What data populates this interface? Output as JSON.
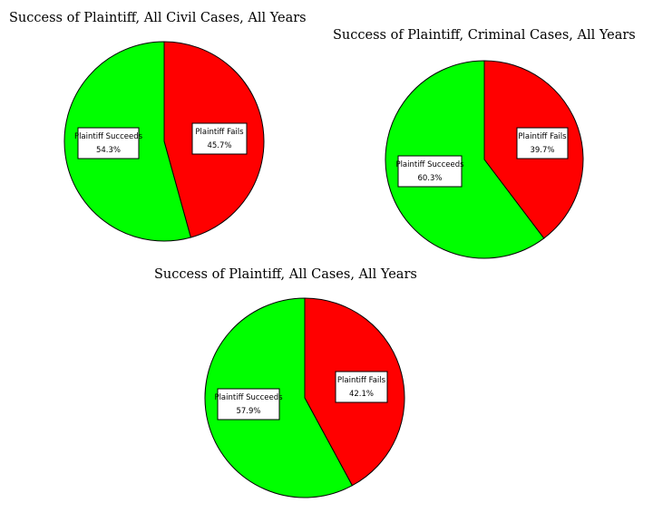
{
  "colors": {
    "succeeds": "#00FF00",
    "fails": "#FF0000",
    "outline": "#000000",
    "label_box": "#FFFFFF"
  },
  "chart_data": [
    {
      "type": "pie",
      "title": "Success of Plaintiff, All Civil Cases, All Years",
      "slices": [
        {
          "label": "Plaintiff Fails",
          "value": 45.7,
          "value_text": "45.7%",
          "color": "#FF0000"
        },
        {
          "label": "Plaintiff Succeeds",
          "value": 54.3,
          "value_text": "54.3%",
          "color": "#00FF00"
        }
      ]
    },
    {
      "type": "pie",
      "title": "Success of Plaintiff, Criminal Cases, All Years",
      "slices": [
        {
          "label": "Plaintiff Fails",
          "value": 39.7,
          "value_text": "39.7%",
          "color": "#FF0000"
        },
        {
          "label": "Plaintiff Succeeds",
          "value": 60.3,
          "value_text": "60.3%",
          "color": "#00FF00"
        }
      ]
    },
    {
      "type": "pie",
      "title": "Success of Plaintiff, All Cases, All Years",
      "slices": [
        {
          "label": "Plaintiff Fails",
          "value": 42.1,
          "value_text": "42.1%",
          "color": "#FF0000"
        },
        {
          "label": "Plaintiff Succeeds",
          "value": 57.9,
          "value_text": "57.9%",
          "color": "#00FF00"
        }
      ]
    }
  ]
}
